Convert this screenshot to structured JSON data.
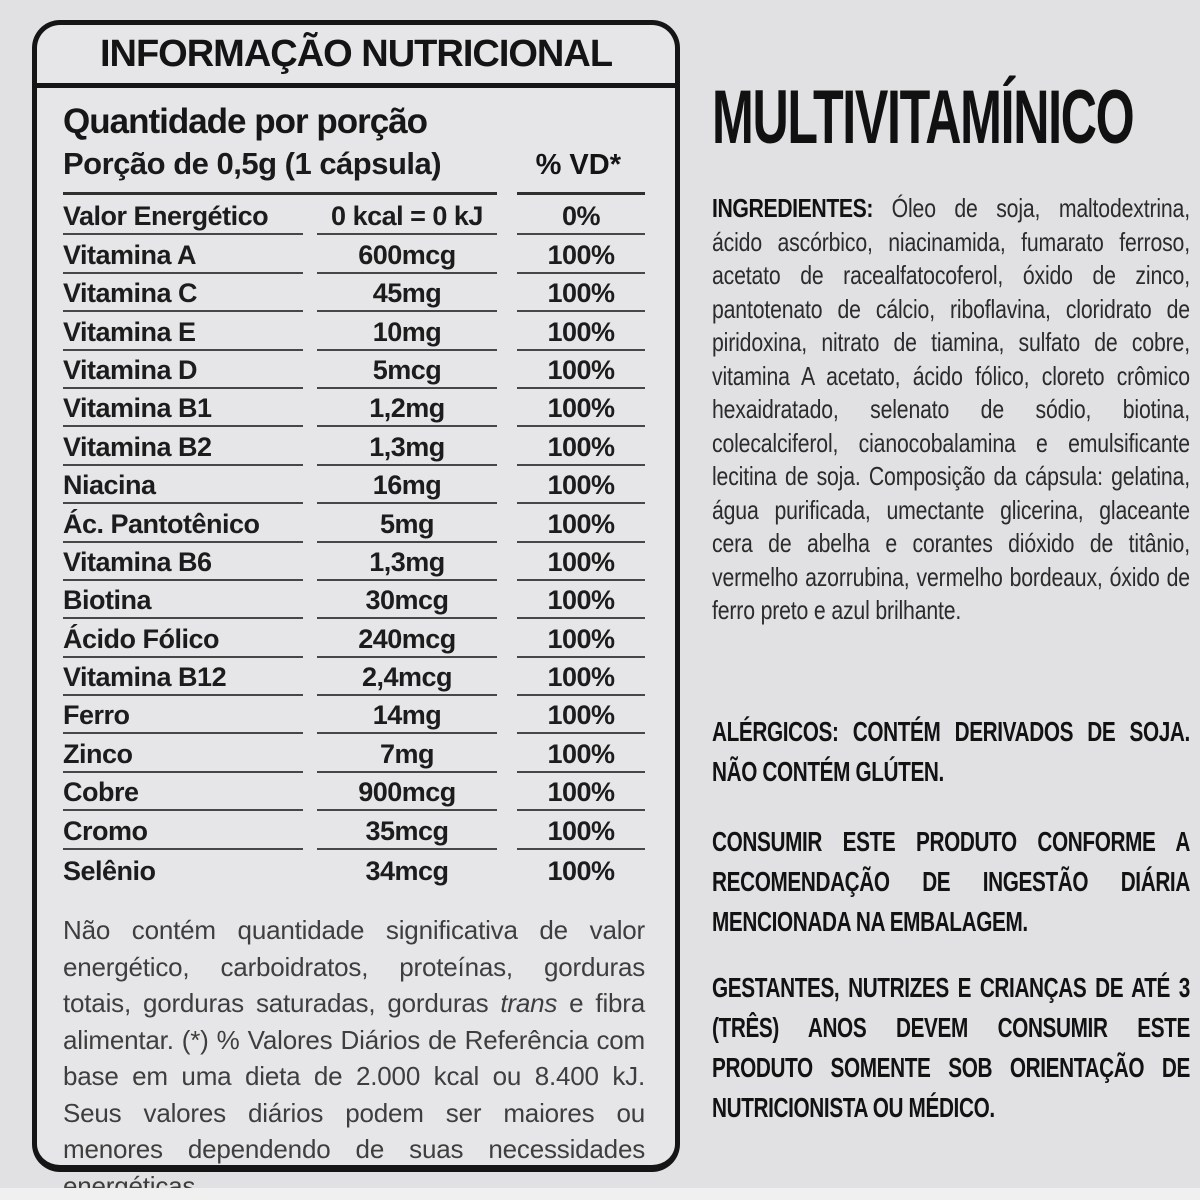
{
  "panel": {
    "title": "INFORMAÇÃO NUTRICIONAL",
    "serving_heading": "Quantidade por porção",
    "serving_size": "Porção de 0,5g (1 cápsula)",
    "vd_header": "% VD*",
    "rows": [
      {
        "name": "Valor Energético",
        "qty": "0 kcal = 0 kJ",
        "vd": "0%"
      },
      {
        "name": "Vitamina A",
        "qty": "600mcg",
        "vd": "100%"
      },
      {
        "name": "Vitamina C",
        "qty": "45mg",
        "vd": "100%"
      },
      {
        "name": "Vitamina E",
        "qty": "10mg",
        "vd": "100%"
      },
      {
        "name": "Vitamina D",
        "qty": "5mcg",
        "vd": "100%"
      },
      {
        "name": "Vitamina B1",
        "qty": "1,2mg",
        "vd": "100%"
      },
      {
        "name": "Vitamina B2",
        "qty": "1,3mg",
        "vd": "100%"
      },
      {
        "name": "Niacina",
        "qty": "16mg",
        "vd": "100%"
      },
      {
        "name": "Ác. Pantotênico",
        "qty": "5mg",
        "vd": "100%"
      },
      {
        "name": "Vitamina B6",
        "qty": "1,3mg",
        "vd": "100%"
      },
      {
        "name": "Biotina",
        "qty": "30mcg",
        "vd": "100%"
      },
      {
        "name": "Ácido Fólico",
        "qty": "240mcg",
        "vd": "100%"
      },
      {
        "name": "Vitamina B12",
        "qty": "2,4mcg",
        "vd": "100%"
      },
      {
        "name": "Ferro",
        "qty": "14mg",
        "vd": "100%"
      },
      {
        "name": "Zinco",
        "qty": "7mg",
        "vd": "100%"
      },
      {
        "name": "Cobre",
        "qty": "900mcg",
        "vd": "100%"
      },
      {
        "name": "Cromo",
        "qty": "35mcg",
        "vd": "100%"
      },
      {
        "name": "Selênio",
        "qty": "34mcg",
        "vd": "100%"
      }
    ],
    "footnote_part1": "Não contém quantidade significativa de valor energético, carboidratos, proteínas, gorduras totais, gorduras saturadas, gorduras ",
    "footnote_italic": "trans",
    "footnote_part2": " e fibra alimentar. (*) % Valores Diários de Referência com base em uma dieta de 2.000 kcal ou 8.400 kJ. Seus valores diários podem ser maiores ou menores dependendo de suas necessidades energéticas."
  },
  "product": {
    "title": "MULTIVITAMÍNICO",
    "ingredients_label": "INGREDIENTES:",
    "ingredients_text": " Óleo de soja, maltodextrina, ácido ascórbico, niacinamida, fumarato ferroso, acetato de racealfatocoferol, óxido de zinco, pantotenato de cálcio, riboflavina, cloridrato de piridoxina, nitrato de tiamina, sulfato de cobre, vitamina A acetato, ácido fólico, cloreto crômico hexaidratado, selenato de sódio, biotina, colecalciferol, cianocobalamina e emulsificante lecitina de soja. Composição da cápsula: gelatina, água purificada, umectante glicerina, glaceante cera de abelha e corantes dióxido de titânio, vermelho azorrubina, vermelho bordeaux, óxido de ferro preto e azul brilhante.",
    "allergens": "ALÉRGICOS: CONTÉM DERIVADOS DE SOJA. NÃO CONTÉM GLÚTEN.",
    "consumption": "CONSUMIR ESTE PRODUTO CONFORME A RECOMENDAÇÃO DE INGESTÃO DIÁRIA MENCIONADA NA EMBALAGEM.",
    "warning": "GESTANTES, NUTRIZES E CRIANÇAS DE ATÉ 3 (TRÊS) ANOS DEVEM CONSUMIR ESTE PRODUTO SOMENTE SOB ORIENTAÇÃO DE NUTRICIONISTA OU MÉDICO."
  },
  "colors": {
    "background": "#e1e1e3",
    "panel_background": "#e6e6e8",
    "ink": "#151515",
    "rule_gray": "#474747",
    "footnote_gray": "#3e3e3e"
  }
}
